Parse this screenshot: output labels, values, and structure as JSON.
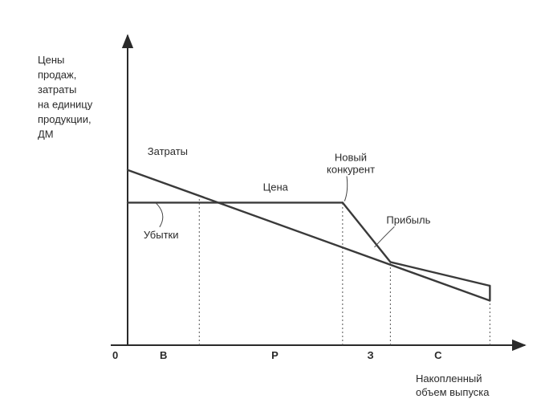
{
  "chart_data": {
    "type": "line",
    "ylabel_lines": [
      "Цены",
      "продаж,",
      "затраты",
      "на единицу",
      "продукции,",
      "ДМ"
    ],
    "xlabel_lines": [
      "Накопленный",
      "объем выпуска"
    ],
    "origin_label": "0",
    "xlim": [
      0,
      100
    ],
    "ylim": [
      0,
      100
    ],
    "series": [
      {
        "name": "Затраты",
        "x": [
          0,
          91
        ],
        "y": [
          59,
          15
        ]
      },
      {
        "name": "Цена",
        "x": [
          0,
          54,
          66,
          91
        ],
        "y": [
          48,
          48,
          28,
          20
        ]
      }
    ],
    "phase_boundaries": [
      18,
      54,
      66,
      91
    ],
    "phases": [
      {
        "label": "B",
        "x": 9
      },
      {
        "label": "P",
        "x": 37
      },
      {
        "label": "З",
        "x": 61
      },
      {
        "label": "С",
        "x": 78
      }
    ],
    "annotations": [
      {
        "text": "Затраты",
        "x": 5,
        "y": 64
      },
      {
        "text": "Цена",
        "x": 34,
        "y": 52
      },
      {
        "text": "Новый",
        "x": 52,
        "y": 62
      },
      {
        "text": "конкурент",
        "x": 50,
        "y": 58
      },
      {
        "text": "Прибыль",
        "x": 65,
        "y": 41
      },
      {
        "text": "Убытки",
        "x": 4,
        "y": 36
      }
    ]
  }
}
